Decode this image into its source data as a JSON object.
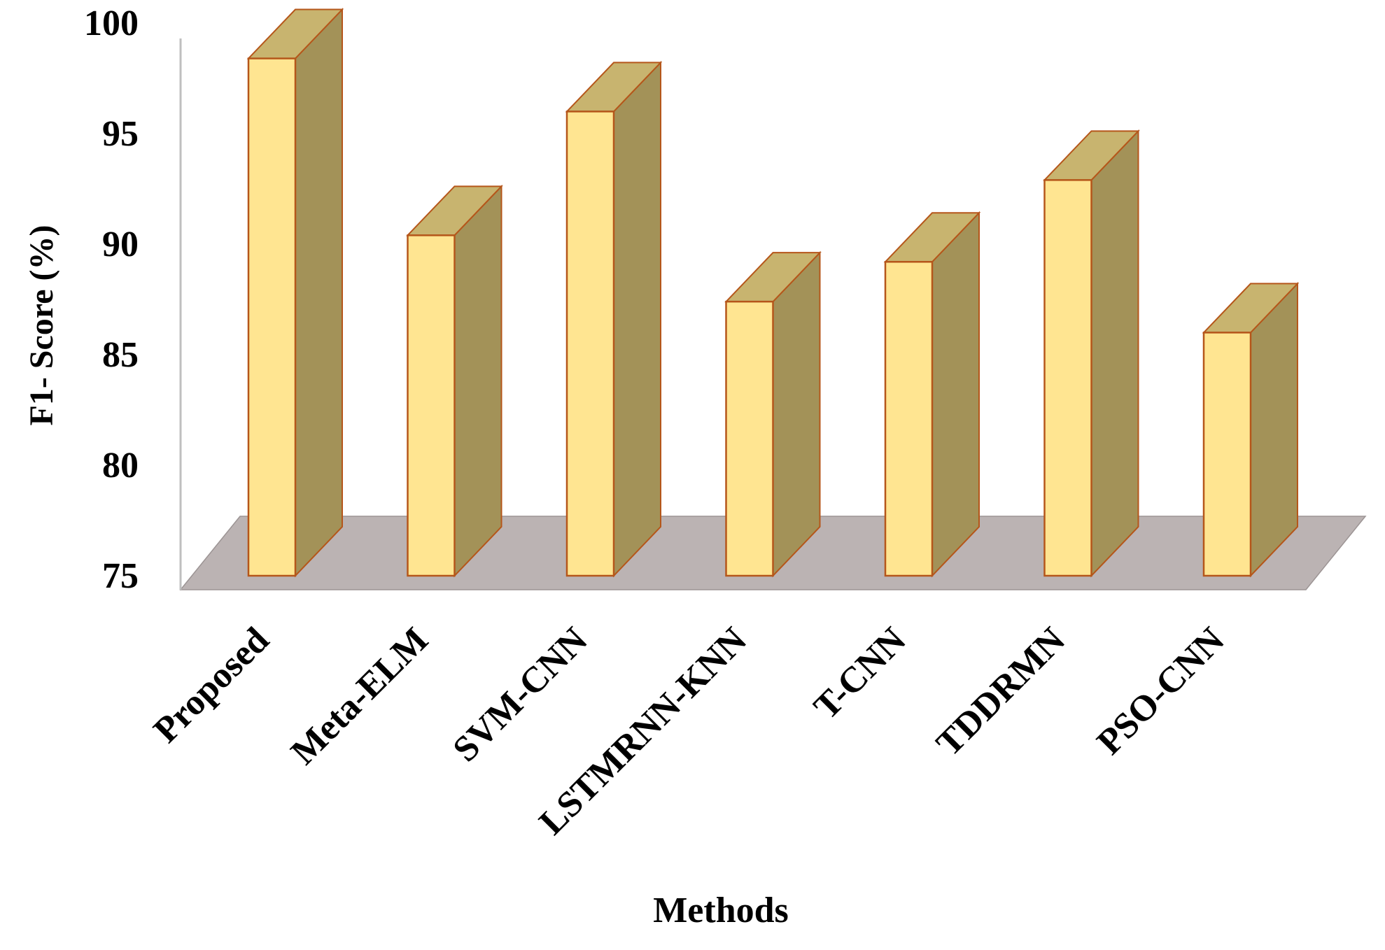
{
  "chart_data": {
    "type": "bar",
    "style": "3d-columns",
    "title": "",
    "xlabel": "Methods",
    "ylabel": "F1- Score (%)",
    "ylim": [
      75,
      100
    ],
    "yticks": [
      75,
      80,
      85,
      90,
      95,
      100
    ],
    "grid": false,
    "legend": "none",
    "categories": [
      "Proposed",
      "Meta-ELM",
      "SVM-CNN",
      "LSTMRNN-KNN",
      "T-CNN",
      "TDDRMN",
      "PSO-CNN"
    ],
    "values": [
      98.4,
      90.4,
      96.0,
      87.4,
      89.2,
      92.9,
      86.0
    ]
  },
  "colors": {
    "bar_front": "#FFE591",
    "bar_top": "#C8B46F",
    "bar_side": "#A39258",
    "bar_outline": "#B5561A",
    "floor": "#BBB3B3",
    "axis": "#BFBFBF"
  }
}
